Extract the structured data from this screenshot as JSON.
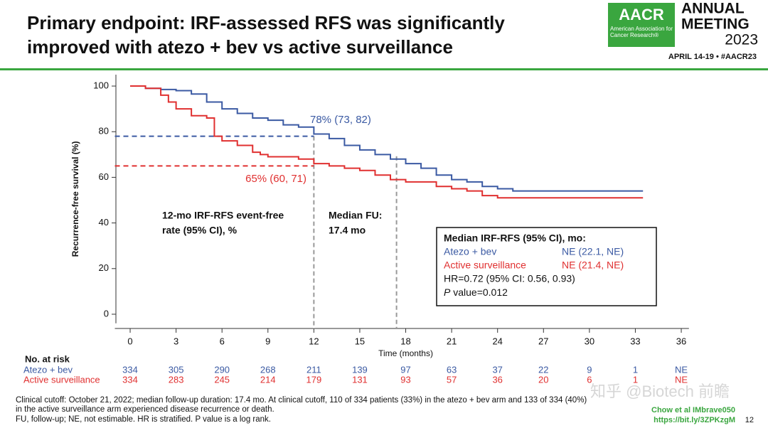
{
  "header": {
    "title_lines": [
      "Primary endpoint: IRF-assessed RFS was significantly",
      "improved with atezo + bev vs active surveillance"
    ],
    "logo": {
      "mark": "AACR",
      "org": "American Association for Cancer Research®",
      "event_lines": [
        "ANNUAL",
        "MEETING"
      ],
      "year": "2023",
      "dates": "APRIL 14-19 • #AACR23"
    }
  },
  "chart_data": {
    "type": "line",
    "x_label": "Time (months)",
    "y_label": "Recurrence-free survival (%)",
    "xlim": [
      -1,
      36.5
    ],
    "ylim": [
      -4,
      105
    ],
    "xticks": [
      0,
      3,
      6,
      9,
      12,
      15,
      18,
      21,
      24,
      27,
      30,
      33,
      36
    ],
    "yticks": [
      0,
      20,
      40,
      60,
      80,
      100
    ],
    "step": true,
    "series": [
      {
        "name": "Atezo + bev",
        "color": "#3b5aa3",
        "x": [
          0,
          1,
          2,
          3,
          4,
          5,
          6,
          7,
          8,
          9,
          10,
          11,
          12,
          13,
          14,
          15,
          16,
          17,
          18,
          19,
          20,
          21,
          22,
          23,
          24,
          25,
          27,
          33.5
        ],
        "values": [
          100,
          99,
          98.5,
          98,
          96.5,
          93,
          90,
          88,
          86,
          85,
          83,
          82,
          79,
          77,
          74,
          72,
          70,
          68,
          66,
          64,
          61,
          59,
          58,
          56,
          55,
          54,
          54,
          54
        ],
        "rate_12mo": 78,
        "rate_label": "78% (73, 82)"
      },
      {
        "name": "Active surveillance",
        "color": "#e03030",
        "x": [
          0,
          1,
          2,
          2.5,
          3,
          4,
          5,
          5.5,
          6,
          7,
          8,
          8.5,
          9,
          11,
          12,
          13,
          14,
          15,
          16,
          17,
          18,
          20,
          21,
          22,
          23,
          24,
          25,
          33.5
        ],
        "values": [
          100,
          99,
          96,
          93,
          90,
          87,
          86,
          78,
          76,
          74,
          71,
          70,
          69,
          68,
          66,
          65,
          64,
          63,
          61,
          59,
          58,
          56,
          55,
          54,
          52,
          51,
          51,
          51
        ],
        "rate_12mo": 65,
        "rate_label": "65% (60, 71)"
      }
    ],
    "landmark_month": 12,
    "landmark_label": [
      "12-mo IRF-RFS event-free",
      "rate (95% CI), %"
    ],
    "median_fu_month": 17.4,
    "median_fu_label": [
      "Median FU:",
      "17.4 mo"
    ],
    "stats_box": {
      "title": "Median IRF-RFS (95% CI), mo:",
      "rows": [
        [
          "Atezo + bev",
          "NE (22.1, NE)"
        ],
        [
          "Active surveillance",
          "NE (21.4, NE)"
        ]
      ],
      "hr": "HR=0.72 (95% CI: 0.56, 0.93)",
      "p_italic": "P",
      "p_rest": " value=0.012"
    },
    "risk_table": {
      "title": "No. at risk",
      "rows": [
        {
          "name": "Atezo + bev",
          "counts": [
            "334",
            "305",
            "290",
            "268",
            "211",
            "139",
            "97",
            "63",
            "37",
            "22",
            "9",
            "1",
            "NE"
          ]
        },
        {
          "name": "Active surveillance",
          "counts": [
            "334",
            "283",
            "245",
            "214",
            "179",
            "131",
            "93",
            "57",
            "36",
            "20",
            "6",
            "1",
            "NE"
          ]
        }
      ]
    }
  },
  "footer": {
    "notes": [
      "Clinical cutoff: October 21, 2022; median follow-up duration: 17.4 mo. At clinical cutoff, 110 of 334 patients (33%) in the atezo + bev arm and 133 of 334 (40%)",
      "in the active surveillance arm experienced disease recurrence or death.",
      "FU, follow-up; NE, not estimable. HR is stratified. P value is a log rank."
    ],
    "credit": [
      "Chow et al IMbrave050",
      "https://bit.ly/3ZPKzgM"
    ],
    "page": "12",
    "watermark": "知乎 @Biotech 前瞻"
  }
}
